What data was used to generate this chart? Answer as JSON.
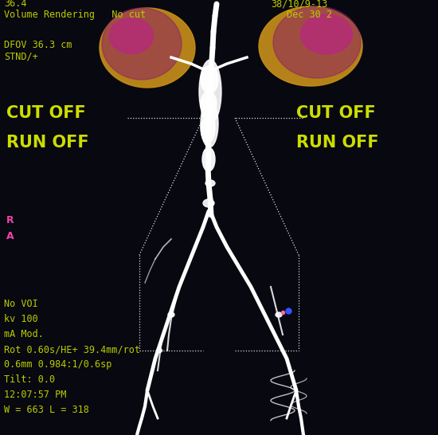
{
  "bg_color": "#080810",
  "top_left_line1": "36.4",
  "top_left_line2": "Volume Rendering   No cut",
  "top_right_line1": "38/10/9-13",
  "top_right_line2": "Dec 30 2",
  "dfov_line1": "DFOV 36.3 cm",
  "dfov_line2": "STND/+",
  "left_cut_off": "CUT OFF",
  "left_run_off": "RUN OFF",
  "right_cut_off": "CUT OFF",
  "right_run_off": "RUN OFF",
  "side_r": "R",
  "side_a": "A",
  "bottom_lines": [
    "No VOI",
    "kv 100",
    "mA Mod.",
    "Rot 0.60s/HE+ 39.4mm/rot",
    "0.6mm 0.984:1/0.6sp",
    "Tilt: 0.0",
    "12:07:57 PM",
    "W = 663 L = 318"
  ],
  "ann_color": "#ccdd00",
  "info_color": "#bbcc00",
  "side_color": "#ee44aa",
  "dot_color": "#dddddd",
  "vessel_color": "#ffffff",
  "lung_gold": "#c8901a",
  "lung_purple": "#8b1a6b",
  "lung_magenta": "#bb2288"
}
